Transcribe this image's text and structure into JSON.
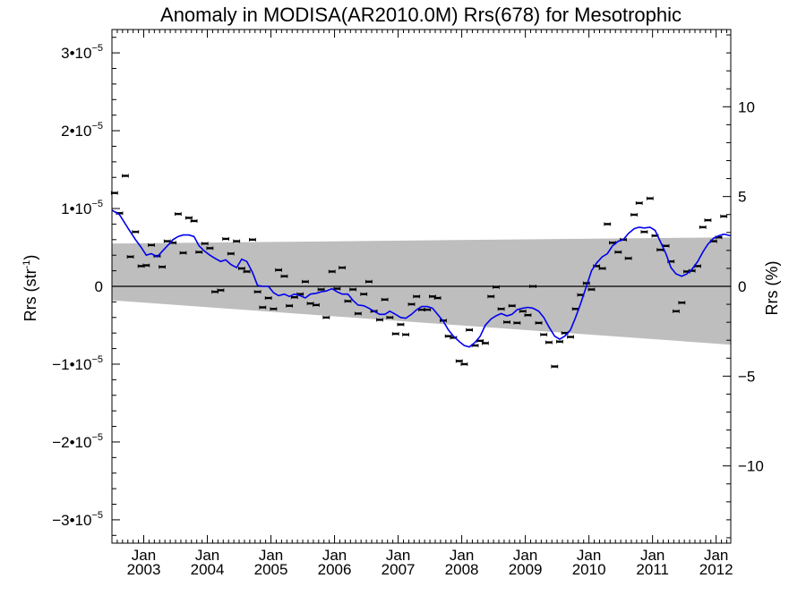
{
  "chart_data": {
    "type": "scatter",
    "title": "Anomaly in MODISA(AR2010.0M) Rrs(678) for Mesotrophic",
    "ylabel_left_main": "Rrs (str",
    "ylabel_left_sup": "-1",
    "ylabel_left_close": ")",
    "ylabel_right": "Rrs (%)",
    "xlim": [
      2002.5,
      2012.23
    ],
    "ylim": [
      -3.3e-05,
      3.3e-05
    ],
    "y_ticks_left": [
      {
        "value": -3e-05,
        "mantissa": "−3•10",
        "exp": "−5"
      },
      {
        "value": -2e-05,
        "mantissa": "−2•10",
        "exp": "−5"
      },
      {
        "value": -1e-05,
        "mantissa": "−1•10",
        "exp": "−5"
      },
      {
        "value": 0,
        "mantissa": "0",
        "exp": ""
      },
      {
        "value": 1e-05,
        "mantissa": "1•10",
        "exp": "−5"
      },
      {
        "value": 2e-05,
        "mantissa": "2•10",
        "exp": "−5"
      },
      {
        "value": 3e-05,
        "mantissa": "3•10",
        "exp": "−5"
      }
    ],
    "y_ticks_right": [
      {
        "value": -10,
        "label": "−10"
      },
      {
        "value": -5,
        "label": "−5"
      },
      {
        "value": 0,
        "label": "0"
      },
      {
        "value": 5,
        "label": "5"
      },
      {
        "value": 10,
        "label": "10"
      }
    ],
    "right_axis_ylim": [
      -14.3,
      14.3
    ],
    "x_ticks": [
      {
        "value": 2003,
        "label1": "Jan",
        "label2": "2003"
      },
      {
        "value": 2004,
        "label1": "Jan",
        "label2": "2004"
      },
      {
        "value": 2005,
        "label1": "Jan",
        "label2": "2005"
      },
      {
        "value": 2006,
        "label1": "Jan",
        "label2": "2006"
      },
      {
        "value": 2007,
        "label1": "Jan",
        "label2": "2007"
      },
      {
        "value": 2008,
        "label1": "Jan",
        "label2": "2008"
      },
      {
        "value": 2009,
        "label1": "Jan",
        "label2": "2009"
      },
      {
        "value": 2010,
        "label1": "Jan",
        "label2": "2010"
      },
      {
        "value": 2011,
        "label1": "Jan",
        "label2": "2011"
      },
      {
        "value": 2012,
        "label1": "Jan",
        "label2": "2012"
      }
    ],
    "band": {
      "x": [
        2002.5,
        2012.23
      ],
      "upper": [
        5.5e-06,
        6.3e-06
      ],
      "lower": [
        -1.8e-06,
        -7.5e-06
      ]
    },
    "points": [
      [
        2002.54,
        1.2e-05
      ],
      [
        2002.62,
        9.4e-06
      ],
      [
        2002.71,
        1.42e-05
      ],
      [
        2002.79,
        3.8e-06
      ],
      [
        2002.87,
        7e-06
      ],
      [
        2002.96,
        2.6e-06
      ],
      [
        2003.04,
        2.7e-06
      ],
      [
        2003.12,
        5.3e-06
      ],
      [
        2003.21,
        3.9e-06
      ],
      [
        2003.29,
        2.5e-06
      ],
      [
        2003.37,
        5.8e-06
      ],
      [
        2003.46,
        5.6e-06
      ],
      [
        2003.54,
        9.3e-06
      ],
      [
        2003.62,
        4.3e-06
      ],
      [
        2003.71,
        8.8e-06
      ],
      [
        2003.79,
        8.4e-06
      ],
      [
        2003.87,
        4.4e-06
      ],
      [
        2003.96,
        5.5e-06
      ],
      [
        2004.04,
        4.9e-06
      ],
      [
        2004.12,
        -7e-07
      ],
      [
        2004.21,
        -5e-07
      ],
      [
        2004.29,
        6.1e-06
      ],
      [
        2004.37,
        4.2e-06
      ],
      [
        2004.46,
        5.8e-06
      ],
      [
        2004.54,
        2.3e-06
      ],
      [
        2004.62,
        1.9e-06
      ],
      [
        2004.71,
        6e-06
      ],
      [
        2004.79,
        -7e-07
      ],
      [
        2004.87,
        -2.7e-06
      ],
      [
        2004.96,
        -1.5e-06
      ],
      [
        2005.04,
        -2.9e-06
      ],
      [
        2005.12,
        2.1e-06
      ],
      [
        2005.21,
        1.3e-06
      ],
      [
        2005.29,
        -2.5e-06
      ],
      [
        2005.37,
        -1.4e-06
      ],
      [
        2005.46,
        -1e-06
      ],
      [
        2005.54,
        6e-07
      ],
      [
        2005.62,
        -2.2e-06
      ],
      [
        2005.71,
        -2.4e-06
      ],
      [
        2005.79,
        -4e-07
      ],
      [
        2005.87,
        -4e-06
      ],
      [
        2005.96,
        1.9e-06
      ],
      [
        2006.04,
        -3e-07
      ],
      [
        2006.12,
        2.4e-06
      ],
      [
        2006.21,
        -1.9e-06
      ],
      [
        2006.29,
        -4e-07
      ],
      [
        2006.37,
        -3.5e-06
      ],
      [
        2006.46,
        -1e-06
      ],
      [
        2006.54,
        6e-07
      ],
      [
        2006.62,
        -3.2e-06
      ],
      [
        2006.71,
        -4.3e-06
      ],
      [
        2006.79,
        -1.7e-06
      ],
      [
        2006.87,
        -4e-06
      ],
      [
        2006.96,
        -6.1e-06
      ],
      [
        2007.04,
        -4.9e-06
      ],
      [
        2007.12,
        -6.2e-06
      ],
      [
        2007.21,
        -2.3e-06
      ],
      [
        2007.29,
        -1.3e-06
      ],
      [
        2007.37,
        -3e-06
      ],
      [
        2007.46,
        -3e-06
      ],
      [
        2007.54,
        -1.3e-06
      ],
      [
        2007.62,
        -1.5e-06
      ],
      [
        2007.71,
        -4.4e-06
      ],
      [
        2007.79,
        -6.4e-06
      ],
      [
        2007.87,
        -6.6e-06
      ],
      [
        2007.96,
        -9.6e-06
      ],
      [
        2008.04,
        -1e-05
      ],
      [
        2008.12,
        -5.6e-06
      ],
      [
        2008.21,
        -7.6e-06
      ],
      [
        2008.29,
        -7e-06
      ],
      [
        2008.37,
        -7.3e-06
      ],
      [
        2008.46,
        -1.3e-06
      ],
      [
        2008.54,
        -1e-07
      ],
      [
        2008.62,
        -2.9e-06
      ],
      [
        2008.71,
        -4.6e-06
      ],
      [
        2008.79,
        -2.5e-06
      ],
      [
        2008.87,
        -4.7e-06
      ],
      [
        2008.96,
        -3.2e-06
      ],
      [
        2009.04,
        -3.7e-06
      ],
      [
        2009.12,
        0.0
      ],
      [
        2009.21,
        -4.7e-06
      ],
      [
        2009.29,
        -6.2e-06
      ],
      [
        2009.37,
        -7.2e-06
      ],
      [
        2009.46,
        -1.03e-05
      ],
      [
        2009.54,
        -7.1e-06
      ],
      [
        2009.62,
        -6e-06
      ],
      [
        2009.71,
        -6.5e-06
      ],
      [
        2009.79,
        -2.9e-06
      ],
      [
        2009.87,
        -1.1e-06
      ],
      [
        2009.96,
        4e-07
      ],
      [
        2010.04,
        -4e-07
      ],
      [
        2010.12,
        2.6e-06
      ],
      [
        2010.21,
        2.3e-06
      ],
      [
        2010.29,
        8e-06
      ],
      [
        2010.37,
        5.6e-06
      ],
      [
        2010.46,
        4.4e-06
      ],
      [
        2010.54,
        6e-06
      ],
      [
        2010.62,
        3.6e-06
      ],
      [
        2010.71,
        9.2e-06
      ],
      [
        2010.79,
        1.07e-05
      ],
      [
        2010.87,
        7e-06
      ],
      [
        2010.96,
        1.13e-05
      ],
      [
        2011.04,
        6.5e-06
      ],
      [
        2011.12,
        4.7e-06
      ],
      [
        2011.21,
        5.2e-06
      ],
      [
        2011.29,
        3.2e-06
      ],
      [
        2011.37,
        -3.2e-06
      ],
      [
        2011.46,
        -2.1e-06
      ],
      [
        2011.54,
        1.9e-06
      ],
      [
        2011.62,
        2e-06
      ],
      [
        2011.71,
        2.6e-06
      ],
      [
        2011.79,
        7.6e-06
      ],
      [
        2011.87,
        8.5e-06
      ],
      [
        2011.96,
        5.8e-06
      ],
      [
        2012.04,
        6.3e-06
      ],
      [
        2012.12,
        9e-06
      ]
    ],
    "smooth_line": [
      [
        2002.5,
        9.8e-06
      ],
      [
        2002.62,
        9.2e-06
      ],
      [
        2002.75,
        7.5e-06
      ],
      [
        2002.87,
        6e-06
      ],
      [
        2002.96,
        5e-06
      ],
      [
        2003.04,
        4e-06
      ],
      [
        2003.12,
        4.2e-06
      ],
      [
        2003.21,
        3.8e-06
      ],
      [
        2003.29,
        4.5e-06
      ],
      [
        2003.37,
        5.2e-06
      ],
      [
        2003.46,
        6e-06
      ],
      [
        2003.54,
        6.4e-06
      ],
      [
        2003.62,
        6.6e-06
      ],
      [
        2003.71,
        6.6e-06
      ],
      [
        2003.79,
        6.4e-06
      ],
      [
        2003.87,
        5.2e-06
      ],
      [
        2003.96,
        4.5e-06
      ],
      [
        2004.04,
        4e-06
      ],
      [
        2004.12,
        3.6e-06
      ],
      [
        2004.21,
        3.2e-06
      ],
      [
        2004.29,
        3.4e-06
      ],
      [
        2004.37,
        2.8e-06
      ],
      [
        2004.46,
        2.4e-06
      ],
      [
        2004.54,
        3.5e-06
      ],
      [
        2004.62,
        3.2e-06
      ],
      [
        2004.71,
        1.8e-06
      ],
      [
        2004.79,
        1e-07
      ],
      [
        2004.87,
        0.0
      ],
      [
        2004.96,
        0.0
      ],
      [
        2005.04,
        -8e-07
      ],
      [
        2005.12,
        -1.2e-06
      ],
      [
        2005.21,
        -1e-06
      ],
      [
        2005.29,
        -1.3e-06
      ],
      [
        2005.37,
        -1e-06
      ],
      [
        2005.46,
        -1.2e-06
      ],
      [
        2005.54,
        -1.5e-06
      ],
      [
        2005.62,
        -1e-06
      ],
      [
        2005.71,
        -9e-07
      ],
      [
        2005.79,
        -7e-07
      ],
      [
        2005.87,
        -6e-07
      ],
      [
        2005.96,
        -3e-07
      ],
      [
        2006.04,
        -7e-07
      ],
      [
        2006.12,
        -1e-06
      ],
      [
        2006.21,
        -1e-06
      ],
      [
        2006.29,
        -1.8e-06
      ],
      [
        2006.37,
        -2.4e-06
      ],
      [
        2006.46,
        -2.5e-06
      ],
      [
        2006.54,
        -2.8e-06
      ],
      [
        2006.62,
        -3.2e-06
      ],
      [
        2006.71,
        -3.6e-06
      ],
      [
        2006.79,
        -3.6e-06
      ],
      [
        2006.87,
        -3.2e-06
      ],
      [
        2006.96,
        -3.6e-06
      ],
      [
        2007.04,
        -4e-06
      ],
      [
        2007.12,
        -4.1e-06
      ],
      [
        2007.21,
        -3.6e-06
      ],
      [
        2007.29,
        -3e-06
      ],
      [
        2007.37,
        -2.6e-06
      ],
      [
        2007.46,
        -2.6e-06
      ],
      [
        2007.54,
        -2.8e-06
      ],
      [
        2007.62,
        -3.6e-06
      ],
      [
        2007.71,
        -4.5e-06
      ],
      [
        2007.79,
        -5.6e-06
      ],
      [
        2007.87,
        -6.4e-06
      ],
      [
        2007.96,
        -7.1e-06
      ],
      [
        2008.04,
        -7.6e-06
      ],
      [
        2008.12,
        -7.8e-06
      ],
      [
        2008.21,
        -7.2e-06
      ],
      [
        2008.29,
        -6.4e-06
      ],
      [
        2008.37,
        -5e-06
      ],
      [
        2008.46,
        -4.2e-06
      ],
      [
        2008.54,
        -3.8e-06
      ],
      [
        2008.62,
        -3.5e-06
      ],
      [
        2008.71,
        -3.8e-06
      ],
      [
        2008.79,
        -3.6e-06
      ],
      [
        2008.87,
        -3e-06
      ],
      [
        2008.96,
        -2.8e-06
      ],
      [
        2009.04,
        -2.7e-06
      ],
      [
        2009.12,
        -2.8e-06
      ],
      [
        2009.21,
        -3.2e-06
      ],
      [
        2009.29,
        -4e-06
      ],
      [
        2009.37,
        -5.2e-06
      ],
      [
        2009.46,
        -6.4e-06
      ],
      [
        2009.54,
        -6.8e-06
      ],
      [
        2009.62,
        -6.4e-06
      ],
      [
        2009.71,
        -5.6e-06
      ],
      [
        2009.79,
        -4e-06
      ],
      [
        2009.87,
        -2.2e-06
      ],
      [
        2009.96,
        0.0
      ],
      [
        2010.04,
        2e-06
      ],
      [
        2010.12,
        3e-06
      ],
      [
        2010.21,
        3.8e-06
      ],
      [
        2010.29,
        4.2e-06
      ],
      [
        2010.37,
        5.2e-06
      ],
      [
        2010.46,
        5.8e-06
      ],
      [
        2010.54,
        6e-06
      ],
      [
        2010.62,
        6.8e-06
      ],
      [
        2010.71,
        7.4e-06
      ],
      [
        2010.79,
        7.6e-06
      ],
      [
        2010.87,
        7.5e-06
      ],
      [
        2010.96,
        7.6e-06
      ],
      [
        2011.04,
        7.2e-06
      ],
      [
        2011.12,
        5.8e-06
      ],
      [
        2011.21,
        4.2e-06
      ],
      [
        2011.29,
        2.4e-06
      ],
      [
        2011.37,
        1.6e-06
      ],
      [
        2011.46,
        1.3e-06
      ],
      [
        2011.54,
        1.6e-06
      ],
      [
        2011.62,
        2.2e-06
      ],
      [
        2011.71,
        3.2e-06
      ],
      [
        2011.79,
        4.4e-06
      ],
      [
        2011.87,
        5.4e-06
      ],
      [
        2011.96,
        6.2e-06
      ],
      [
        2012.04,
        6.5e-06
      ],
      [
        2012.12,
        6.7e-06
      ],
      [
        2012.23,
        6.5e-06
      ]
    ],
    "colors": {
      "band": "#bebebe",
      "smooth_line": "#0000ee",
      "points": "#000000",
      "zero_line": "#000000"
    }
  }
}
